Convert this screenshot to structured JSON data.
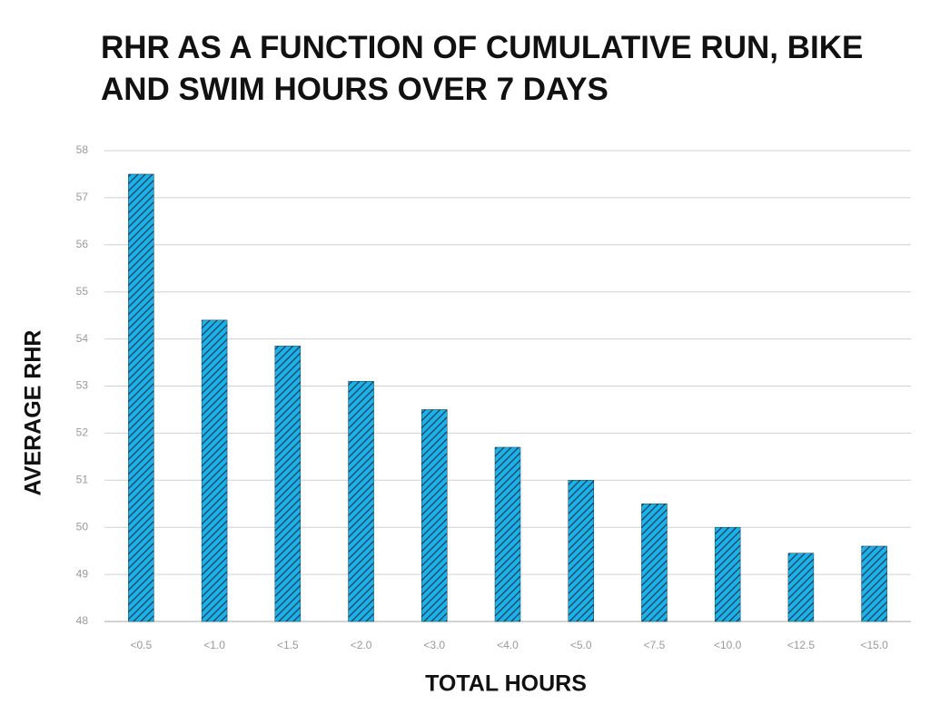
{
  "chart_data": {
    "type": "bar",
    "title": "RHR AS A FUNCTION OF CUMULATIVE RUN, BIKE AND SWIM HOURS OVER 7 DAYS",
    "xlabel": "TOTAL HOURS",
    "ylabel": "AVERAGE RHR",
    "categories": [
      "<0.5",
      "<1.0",
      "<1.5",
      "<2.0",
      "<3.0",
      "<4.0",
      "<5.0",
      "<7.5",
      "<10.0",
      "<12.5",
      "<15.0"
    ],
    "values": [
      57.5,
      54.4,
      53.85,
      53.1,
      52.5,
      51.7,
      51.0,
      50.5,
      50.0,
      49.45,
      49.6
    ],
    "color": "#1ab2e8",
    "hatch": "#1a3a52",
    "ylim": [
      48,
      58
    ],
    "yticks": [
      48,
      49,
      50,
      51,
      52,
      53,
      54,
      55,
      56,
      57,
      58
    ],
    "grid": true
  }
}
